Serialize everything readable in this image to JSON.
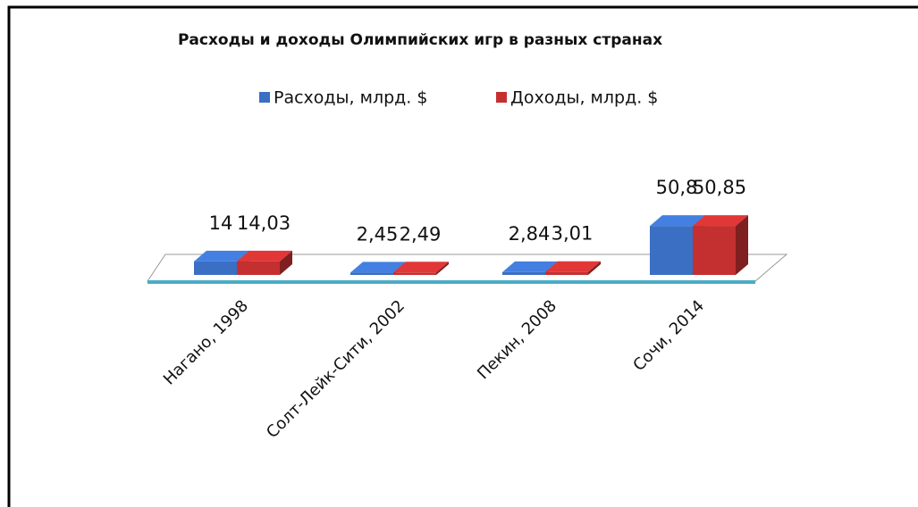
{
  "chart_data": {
    "type": "bar3d",
    "title": "Расходы и доходы Олимпийских игр в разных странах",
    "categories": [
      "Нагано, 1998",
      "Солт-Лейк-Сити, 2002",
      "Пекин, 2008",
      "Сочи, 2014"
    ],
    "series": [
      {
        "name": "Расходы, млрд. $",
        "color": "#3a6fc4",
        "values": [
          14,
          2.45,
          2.84,
          50.8
        ],
        "value_labels": [
          "14",
          "2,45",
          "2,84",
          "50,8"
        ]
      },
      {
        "name": "Доходы, млрд. $",
        "color": "#c4302f",
        "values": [
          14.03,
          2.49,
          3.01,
          50.85
        ],
        "value_labels": [
          "14,03",
          "2,49",
          "3,01",
          "50,85"
        ]
      }
    ],
    "legend": "top"
  }
}
